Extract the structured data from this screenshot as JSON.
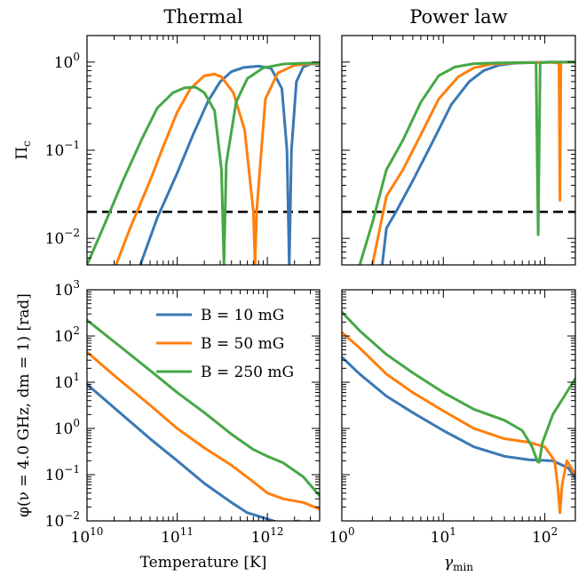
{
  "colors": {
    "B10": "#3a78b4",
    "B50": "#ff7f0e",
    "B250": "#46a846"
  },
  "chart_data": [
    {
      "type": "line",
      "panel": "top-left",
      "title": "Thermal",
      "xlabel": "",
      "ylabel": "Πc",
      "xscale": "log",
      "yscale": "log",
      "xlim": [
        10000000000.0,
        3800000000000.0
      ],
      "ylim": [
        0.005,
        2.0
      ],
      "xticks": [],
      "yticks": [
        "10^-2",
        "10^-1",
        "10^0"
      ],
      "hline": 0.02,
      "series": [
        {
          "name": "B = 10 mG",
          "color": "B10",
          "points": [
            [
              39000000000.0,
              0.005
            ],
            [
              60000000000.0,
              0.017
            ],
            [
              100000000000.0,
              0.055
            ],
            [
              150000000000.0,
              0.15
            ],
            [
              220000000000.0,
              0.36
            ],
            [
              300000000000.0,
              0.6
            ],
            [
              400000000000.0,
              0.78
            ],
            [
              550000000000.0,
              0.87
            ],
            [
              800000000000.0,
              0.9
            ],
            [
              1100000000000.0,
              0.85
            ],
            [
              1450000000000.0,
              0.5
            ],
            [
              1650000000000.0,
              0.1
            ],
            [
              1750000000000.0,
              0.005
            ],
            [
              1850000000000.0,
              0.1
            ],
            [
              2100000000000.0,
              0.6
            ],
            [
              2500000000000.0,
              0.88
            ],
            [
              3000000000000.0,
              0.95
            ],
            [
              3800000000000.0,
              0.96
            ]
          ]
        },
        {
          "name": "B = 50 mG",
          "color": "B50",
          "points": [
            [
              21000000000.0,
              0.005
            ],
            [
              30000000000.0,
              0.013
            ],
            [
              50000000000.0,
              0.045
            ],
            [
              70000000000.0,
              0.11
            ],
            [
              100000000000.0,
              0.27
            ],
            [
              140000000000.0,
              0.5
            ],
            [
              200000000000.0,
              0.7
            ],
            [
              260000000000.0,
              0.73
            ],
            [
              310000000000.0,
              0.68
            ],
            [
              420000000000.0,
              0.45
            ],
            [
              560000000000.0,
              0.17
            ],
            [
              700000000000.0,
              0.02
            ],
            [
              730000000000.0,
              0.005
            ],
            [
              760000000000.0,
              0.02
            ],
            [
              950000000000.0,
              0.38
            ],
            [
              1300000000000.0,
              0.75
            ],
            [
              2000000000000.0,
              0.92
            ],
            [
              3000000000000.0,
              0.96
            ],
            [
              3800000000000.0,
              0.97
            ]
          ]
        },
        {
          "name": "B = 250 mG",
          "color": "B250",
          "points": [
            [
              10000000000.0,
              0.005
            ],
            [
              15000000000.0,
              0.013
            ],
            [
              25000000000.0,
              0.045
            ],
            [
              40000000000.0,
              0.13
            ],
            [
              60000000000.0,
              0.3
            ],
            [
              90000000000.0,
              0.45
            ],
            [
              120000000000.0,
              0.51
            ],
            [
              160000000000.0,
              0.52
            ],
            [
              200000000000.0,
              0.45
            ],
            [
              260000000000.0,
              0.28
            ],
            [
              310000000000.0,
              0.06
            ],
            [
              330000000000.0,
              0.005
            ],
            [
              350000000000.0,
              0.07
            ],
            [
              450000000000.0,
              0.35
            ],
            [
              600000000000.0,
              0.65
            ],
            [
              900000000000.0,
              0.86
            ],
            [
              1500000000000.0,
              0.95
            ],
            [
              2500000000000.0,
              0.97
            ],
            [
              3800000000000.0,
              0.98
            ]
          ]
        }
      ]
    },
    {
      "type": "line",
      "panel": "top-right",
      "title": "Power law",
      "xlabel": "",
      "ylabel": "",
      "xscale": "log",
      "yscale": "log",
      "xlim": [
        1,
        200
      ],
      "ylim": [
        0.005,
        2.0
      ],
      "xticks": [],
      "yticks": [],
      "hline": 0.02,
      "series": [
        {
          "name": "B = 10 mG",
          "color": "B10",
          "points": [
            [
              2.5,
              0.005
            ],
            [
              2.75,
              0.013
            ],
            [
              3.5,
              0.021
            ],
            [
              5,
              0.045
            ],
            [
              8,
              0.13
            ],
            [
              12,
              0.33
            ],
            [
              18,
              0.6
            ],
            [
              25,
              0.8
            ],
            [
              35,
              0.92
            ],
            [
              50,
              0.97
            ],
            [
              80,
              0.99
            ],
            [
              110,
              1.0
            ],
            [
              160,
              1.0
            ],
            [
              200,
              1.0
            ]
          ]
        },
        {
          "name": "B = 50 mG",
          "color": "B50",
          "points": [
            [
              2.0,
              0.005
            ],
            [
              2.75,
              0.03
            ],
            [
              4,
              0.06
            ],
            [
              6,
              0.15
            ],
            [
              9,
              0.38
            ],
            [
              14,
              0.68
            ],
            [
              20,
              0.86
            ],
            [
              30,
              0.95
            ],
            [
              50,
              0.98
            ],
            [
              90,
              0.99
            ],
            [
              120,
              0.99
            ],
            [
              138,
              0.97
            ],
            [
              141,
              0.027
            ],
            [
              144,
              0.99
            ],
            [
              170,
              1.0
            ],
            [
              200,
              1.0
            ]
          ]
        },
        {
          "name": "B = 250 mG",
          "color": "B250",
          "points": [
            [
              1.5,
              0.005
            ],
            [
              2.0,
              0.015
            ],
            [
              2.75,
              0.06
            ],
            [
              4,
              0.13
            ],
            [
              6,
              0.35
            ],
            [
              9,
              0.7
            ],
            [
              13,
              0.88
            ],
            [
              20,
              0.96
            ],
            [
              35,
              0.98
            ],
            [
              70,
              0.99
            ],
            [
              82,
              0.98
            ],
            [
              86,
              0.011
            ],
            [
              90,
              0.98
            ],
            [
              110,
              1.0
            ],
            [
              200,
              1.0
            ]
          ]
        }
      ]
    },
    {
      "type": "line",
      "panel": "bottom-left",
      "title": "",
      "xlabel": "Temperature [K]",
      "ylabel": "φ(ν = 4.0 GHz, dm = 1) [rad]",
      "xscale": "log",
      "yscale": "log",
      "xlim": [
        10000000000.0,
        3800000000000.0
      ],
      "ylim": [
        0.01,
        1000
      ],
      "xticks": [
        "10^10",
        "10^11",
        "10^12"
      ],
      "yticks": [
        "10^-2",
        "10^-1",
        "10^0",
        "10^1",
        "10^2",
        "10^3"
      ],
      "legend": "upper-center",
      "series": [
        {
          "name": "B = 10 mG",
          "color": "B10",
          "points": [
            [
              10000000000.0,
              9
            ],
            [
              20000000000.0,
              2.8
            ],
            [
              50000000000.0,
              0.6
            ],
            [
              100000000000.0,
              0.2
            ],
            [
              200000000000.0,
              0.065
            ],
            [
              400000000000.0,
              0.025
            ],
            [
              600000000000.0,
              0.015
            ],
            [
              1000000000000.0,
              0.011
            ],
            [
              1500000000000.0,
              0.0085
            ],
            [
              2200000000000.0,
              0.01
            ],
            [
              2600000000000.0,
              0.0065
            ]
          ]
        },
        {
          "name": "B = 50 mG",
          "color": "B50",
          "points": [
            [
              10000000000.0,
              45
            ],
            [
              20000000000.0,
              14
            ],
            [
              50000000000.0,
              3.2
            ],
            [
              100000000000.0,
              1.0
            ],
            [
              200000000000.0,
              0.38
            ],
            [
              400000000000.0,
              0.16
            ],
            [
              700000000000.0,
              0.07
            ],
            [
              1000000000000.0,
              0.04
            ],
            [
              1500000000000.0,
              0.03
            ],
            [
              2500000000000.0,
              0.025
            ],
            [
              3800000000000.0,
              0.018
            ]
          ]
        },
        {
          "name": "B = 250 mG",
          "color": "B250",
          "points": [
            [
              10000000000.0,
              220
            ],
            [
              20000000000.0,
              75
            ],
            [
              50000000000.0,
              18
            ],
            [
              100000000000.0,
              6
            ],
            [
              200000000000.0,
              2.2
            ],
            [
              400000000000.0,
              0.75
            ],
            [
              700000000000.0,
              0.35
            ],
            [
              1000000000000.0,
              0.25
            ],
            [
              1500000000000.0,
              0.18
            ],
            [
              2500000000000.0,
              0.09
            ],
            [
              3800000000000.0,
              0.035
            ]
          ]
        }
      ]
    },
    {
      "type": "line",
      "panel": "bottom-right",
      "title": "",
      "xlabel": "γmin",
      "ylabel": "",
      "xscale": "log",
      "yscale": "log",
      "xlim": [
        1,
        200
      ],
      "ylim": [
        0.01,
        1000
      ],
      "xticks": [
        "10^0",
        "10^1",
        "10^2"
      ],
      "yticks": [],
      "series": [
        {
          "name": "B = 10 mG",
          "color": "B10",
          "points": [
            [
              1,
              35
            ],
            [
              1.5,
              15
            ],
            [
              2.75,
              5
            ],
            [
              5,
              2.2
            ],
            [
              10,
              0.9
            ],
            [
              20,
              0.4
            ],
            [
              40,
              0.25
            ],
            [
              70,
              0.21
            ],
            [
              120,
              0.2
            ],
            [
              170,
              0.14
            ],
            [
              200,
              0.085
            ]
          ]
        },
        {
          "name": "B = 50 mG",
          "color": "B50",
          "points": [
            [
              1,
              120
            ],
            [
              1.5,
              55
            ],
            [
              2.75,
              15
            ],
            [
              5,
              6
            ],
            [
              10,
              2.4
            ],
            [
              20,
              1.0
            ],
            [
              40,
              0.6
            ],
            [
              70,
              0.5
            ],
            [
              100,
              0.4
            ],
            [
              125,
              0.2
            ],
            [
              135,
              0.05
            ],
            [
              141,
              0.015
            ],
            [
              148,
              0.06
            ],
            [
              165,
              0.2
            ],
            [
              200,
              0.1
            ]
          ]
        },
        {
          "name": "B = 250 mG",
          "color": "B250",
          "points": [
            [
              1,
              330
            ],
            [
              1.5,
              130
            ],
            [
              2.75,
              40
            ],
            [
              5,
              16
            ],
            [
              10,
              6
            ],
            [
              20,
              2.6
            ],
            [
              40,
              1.5
            ],
            [
              60,
              0.9
            ],
            [
              75,
              0.4
            ],
            [
              85,
              0.19
            ],
            [
              88,
              0.185
            ],
            [
              95,
              0.5
            ],
            [
              120,
              2.0
            ],
            [
              160,
              5.5
            ],
            [
              200,
              12
            ]
          ]
        }
      ]
    }
  ]
}
